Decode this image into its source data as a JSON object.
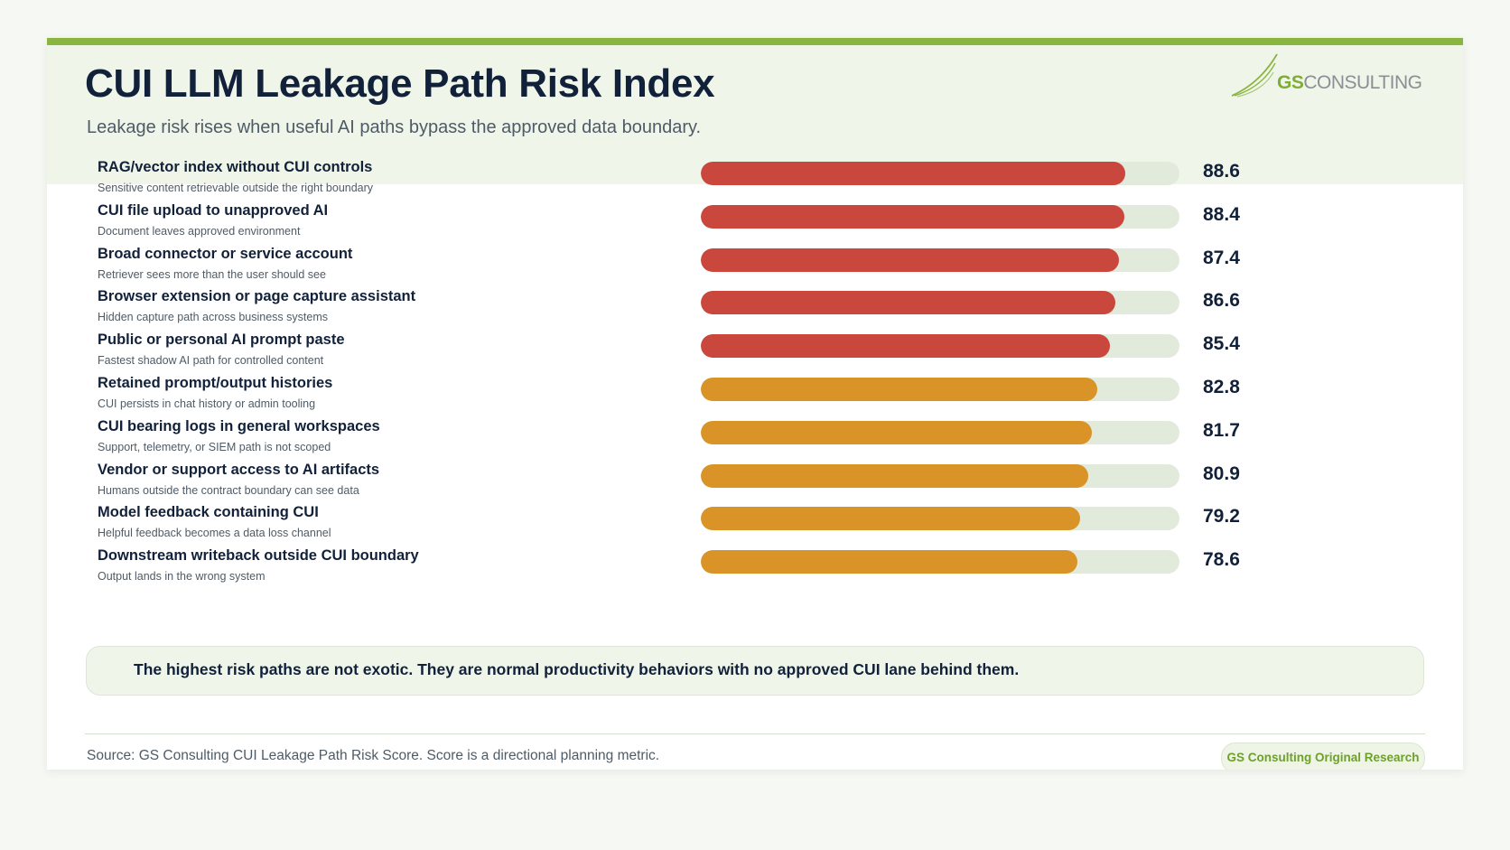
{
  "header": {
    "title": "CUI LLM Leakage Path Risk Index",
    "subtitle": "Leakage risk rises when useful AI paths bypass the approved data boundary.",
    "logo_gs": "GS",
    "logo_rest": "CONSULTING"
  },
  "colors": {
    "high": "#c9473c",
    "medium": "#d99326",
    "track": "#e2eadc",
    "accent": "#8ab53f"
  },
  "chart_data": {
    "type": "bar",
    "orientation": "horizontal",
    "xlim": [
      0,
      100
    ],
    "categories": [
      "RAG/vector index without CUI controls",
      "CUI file upload to unapproved AI",
      "Broad connector or service account",
      "Browser extension or page capture assistant",
      "Public or personal AI prompt paste",
      "Retained prompt/output histories",
      "CUI bearing logs in general workspaces",
      "Vendor or support access to AI artifacts",
      "Model feedback containing CUI",
      "Downstream writeback outside CUI boundary"
    ],
    "descriptions": [
      "Sensitive content retrievable outside the right boundary",
      "Document leaves approved environment",
      "Retriever sees more than the user should see",
      "Hidden capture path across business systems",
      "Fastest shadow AI path for controlled content",
      "CUI persists in chat history or admin tooling",
      "Support, telemetry, or SIEM path is not scoped",
      "Humans outside the contract boundary can see data",
      "Helpful feedback becomes a data loss channel",
      "Output lands in the wrong system"
    ],
    "values": [
      88.6,
      88.4,
      87.4,
      86.6,
      85.4,
      82.8,
      81.7,
      80.9,
      79.2,
      78.6
    ],
    "value_labels": [
      "88.6",
      "88.4",
      "87.4",
      "86.6",
      "85.4",
      "82.8",
      "81.7",
      "80.9",
      "79.2",
      "78.6"
    ],
    "tiers": [
      "high",
      "high",
      "high",
      "high",
      "high",
      "medium",
      "medium",
      "medium",
      "medium",
      "medium"
    ]
  },
  "callout": "The highest risk paths are not exotic. They are normal productivity behaviors with no approved CUI lane behind them.",
  "footer": {
    "source": "Source: GS Consulting CUI Leakage Path Risk Score. Score is a directional planning metric.",
    "badge": "GS Consulting Original Research"
  }
}
